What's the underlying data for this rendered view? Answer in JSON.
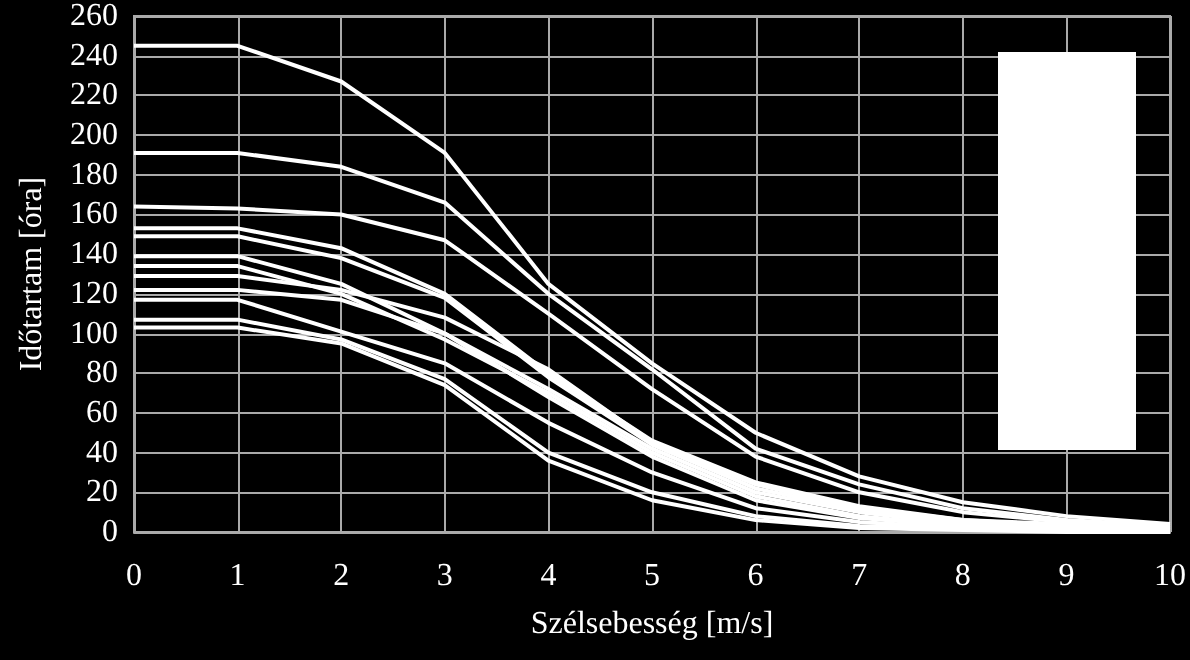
{
  "chart_data": {
    "type": "line",
    "xlabel": "Szélsebesség [m/s]",
    "ylabel": "Időtartam [óra]",
    "x": [
      0,
      1,
      2,
      3,
      4,
      5,
      6,
      7,
      8,
      9,
      10
    ],
    "xlim": [
      0,
      10
    ],
    "xticks": [
      0,
      1,
      2,
      3,
      4,
      5,
      6,
      7,
      8,
      9,
      10
    ],
    "ylim": [
      0,
      260
    ],
    "yticks": [
      0,
      20,
      40,
      60,
      80,
      100,
      120,
      140,
      160,
      180,
      200,
      220,
      240,
      260
    ],
    "grid": true,
    "marker": "none",
    "line_style": "solid",
    "series": [
      {
        "color": "#ffffff",
        "values": [
          245,
          245,
          227,
          191,
          125,
          85,
          50,
          28,
          15,
          8,
          4
        ]
      },
      {
        "color": "#ffffff",
        "values": [
          191,
          191,
          184,
          166,
          120,
          82,
          42,
          24,
          12,
          6,
          3
        ]
      },
      {
        "color": "#ffffff",
        "values": [
          164,
          163,
          160,
          147,
          110,
          72,
          38,
          20,
          10,
          5,
          2
        ]
      },
      {
        "color": "#ffffff",
        "values": [
          153,
          153,
          143,
          120,
          80,
          46,
          25,
          13,
          6,
          4,
          3
        ]
      },
      {
        "color": "#ffffff",
        "values": [
          149,
          149,
          138,
          118,
          78,
          44,
          22,
          11,
          5,
          2,
          0
        ]
      },
      {
        "color": "#ffffff",
        "values": [
          139,
          139,
          125,
          100,
          72,
          42,
          20,
          10,
          4,
          2,
          1
        ]
      },
      {
        "color": "#ffffff",
        "values": [
          134,
          134,
          120,
          97,
          70,
          40,
          18,
          8,
          3,
          1,
          0
        ]
      },
      {
        "color": "#ffffff",
        "values": [
          129,
          129,
          122,
          108,
          82,
          45,
          24,
          12,
          6,
          3,
          1
        ]
      },
      {
        "color": "#ffffff",
        "values": [
          122,
          122,
          117,
          100,
          68,
          38,
          16,
          7,
          3,
          1,
          0
        ]
      },
      {
        "color": "#ffffff",
        "values": [
          117,
          117,
          101,
          85,
          55,
          30,
          12,
          5,
          2,
          1,
          0
        ]
      },
      {
        "color": "#ffffff",
        "values": [
          107,
          107,
          97,
          77,
          40,
          20,
          8,
          3,
          2,
          1,
          1
        ]
      },
      {
        "color": "#ffffff",
        "values": [
          103,
          103,
          95,
          74,
          36,
          16,
          6,
          2,
          1,
          0,
          0
        ]
      }
    ]
  }
}
